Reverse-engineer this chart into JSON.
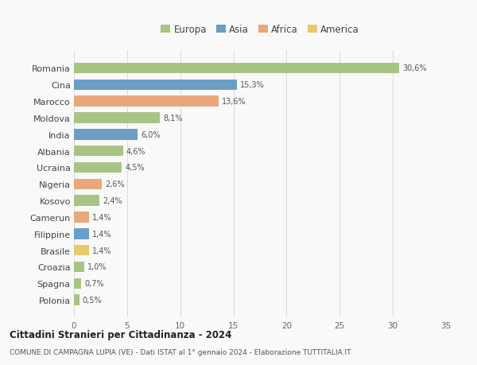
{
  "countries": [
    "Romania",
    "Cina",
    "Marocco",
    "Moldova",
    "India",
    "Albania",
    "Ucraina",
    "Nigeria",
    "Kosovo",
    "Camerun",
    "Filippine",
    "Brasile",
    "Croazia",
    "Spagna",
    "Polonia"
  ],
  "values": [
    30.6,
    15.3,
    13.6,
    8.1,
    6.0,
    4.6,
    4.5,
    2.6,
    2.4,
    1.4,
    1.4,
    1.4,
    1.0,
    0.7,
    0.5
  ],
  "labels": [
    "30,6%",
    "15,3%",
    "13,6%",
    "8,1%",
    "6,0%",
    "4,6%",
    "4,5%",
    "2,6%",
    "2,4%",
    "1,4%",
    "1,4%",
    "1,4%",
    "1,0%",
    "0,7%",
    "0,5%"
  ],
  "colors": [
    "#a8c484",
    "#6a9ec5",
    "#e8a87c",
    "#a8c484",
    "#6a9ec5",
    "#a8c484",
    "#a8c484",
    "#e8a87c",
    "#a8c484",
    "#e8a87c",
    "#6a9ec5",
    "#e8c96e",
    "#a8c484",
    "#a8c484",
    "#a8c484"
  ],
  "legend_labels": [
    "Europa",
    "Asia",
    "Africa",
    "America"
  ],
  "legend_colors": [
    "#a8c484",
    "#6a9ec5",
    "#e8a87c",
    "#e8c96e"
  ],
  "title": "Cittadini Stranieri per Cittadinanza - 2024",
  "subtitle": "COMUNE DI CAMPAGNA LUPIA (VE) - Dati ISTAT al 1° gennaio 2024 - Elaborazione TUTTITALIA.IT",
  "xlim": [
    0,
    35
  ],
  "xticks": [
    0,
    5,
    10,
    15,
    20,
    25,
    30,
    35
  ],
  "background_color": "#f9f9f9",
  "grid_color": "#dddddd"
}
